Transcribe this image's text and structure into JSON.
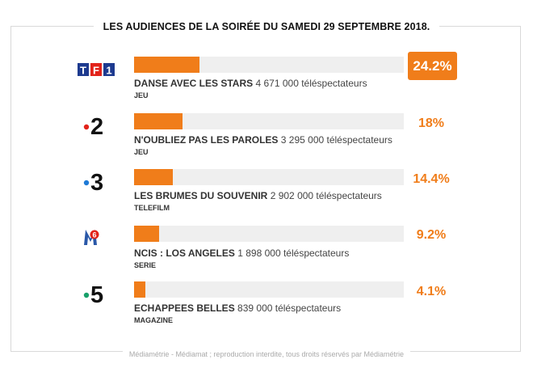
{
  "title": "LES AUDIENCES DE LA SOIRÉE DU SAMEDI 29 SEPTEMBRE 2018.",
  "footer": "Médiamétrie - Médiamat ; reproduction interdite, tous droits réservés par Médiamétrie",
  "colors": {
    "bar": "#f07d1a",
    "track": "#efefef",
    "highlight": "#f07d1a"
  },
  "chart_data": {
    "type": "bar",
    "orientation": "horizontal",
    "title": "LES AUDIENCES DE LA SOIRÉE DU SAMEDI 29 SEPTEMBRE 2018.",
    "categories": [
      "TF1",
      "France 2",
      "France 3",
      "M6",
      "France 5"
    ],
    "values": [
      24.2,
      18,
      14.4,
      9.2,
      4.1
    ],
    "value_labels": [
      "24.2%",
      "18%",
      "14.4%",
      "9.2%",
      "4.1%"
    ],
    "ylim": [
      0,
      100
    ],
    "rows": [
      {
        "channel_icon": "tf1-logo-icon",
        "pct": "24.2%",
        "value": 24.2,
        "program": "DANSE AVEC LES STARS",
        "audience": "4 671 000 téléspectateurs",
        "genre": "JEU",
        "highlight": true
      },
      {
        "channel_icon": "france2-logo-icon",
        "pct": "18%",
        "value": 18,
        "program": "N'OUBLIEZ PAS LES PAROLES",
        "audience": "3 295 000 téléspectateurs",
        "genre": "JEU",
        "highlight": false
      },
      {
        "channel_icon": "france3-logo-icon",
        "pct": "14.4%",
        "value": 14.4,
        "program": "LES BRUMES DU SOUVENIR",
        "audience": "2 902 000 téléspectateurs",
        "genre": "TELEFILM",
        "highlight": false
      },
      {
        "channel_icon": "m6-logo-icon",
        "pct": "9.2%",
        "value": 9.2,
        "program": "NCIS : LOS ANGELES",
        "audience": "1 898 000 téléspectateurs",
        "genre": "SERIE",
        "highlight": false
      },
      {
        "channel_icon": "france5-logo-icon",
        "pct": "4.1%",
        "value": 4.1,
        "program": "ECHAPPEES BELLES",
        "audience": "839 000 téléspectateurs",
        "genre": "MAGAZINE",
        "highlight": false
      }
    ]
  }
}
